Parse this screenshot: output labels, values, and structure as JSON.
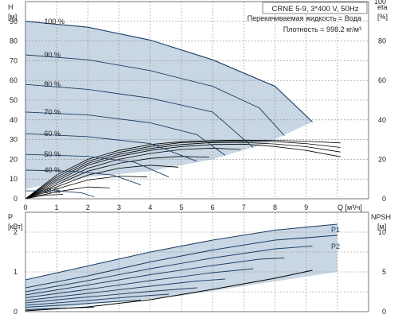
{
  "header": {
    "model": "CRNE 5-9, 3*400 V, 50Hz",
    "liquid_line": "Перекачиваемая жидкость = Вода",
    "density_line": "Плотность = 998.2 кг/м³"
  },
  "colors": {
    "area_fill": "#c9d6e3",
    "grid": "#8c8c8c",
    "curve": "#1c3f66",
    "eta_curve": "#000000",
    "axis_text": "#222222"
  },
  "chart_data": [
    {
      "type": "line",
      "title": "",
      "xlabel": "Q [м³/ч]",
      "ylabel": "H [м]",
      "right_label": "eta [%]",
      "xlim": [
        0,
        11
      ],
      "ylim": [
        0,
        100
      ],
      "right_ylim": [
        0,
        100
      ],
      "x_ticks": [
        0,
        1,
        2,
        3,
        4,
        5,
        6,
        7,
        8,
        9
      ],
      "y_ticks": [
        0,
        10,
        20,
        30,
        40,
        50,
        60,
        70,
        80,
        90
      ],
      "right_ticks": [
        0,
        20,
        40,
        60,
        80,
        100
      ],
      "grid": true,
      "operating_area": {
        "upper": [
          [
            0,
            90
          ],
          [
            2,
            87
          ],
          [
            4,
            80.5
          ],
          [
            6,
            70.5
          ],
          [
            8,
            57
          ],
          [
            9.2,
            39
          ]
        ],
        "lower": [
          [
            7.7,
            28
          ],
          [
            6,
            20
          ],
          [
            4,
            14
          ],
          [
            2,
            11
          ],
          [
            0,
            5
          ]
        ]
      },
      "series": [
        {
          "name": "100 %",
          "x": [
            0,
            2,
            4,
            6,
            8,
            9.2
          ],
          "y": [
            90,
            87,
            80.5,
            70.5,
            57,
            39
          ]
        },
        {
          "name": "90 %",
          "x": [
            0,
            2,
            4,
            6,
            7.5,
            8.3
          ],
          "y": [
            73,
            70.5,
            65,
            57,
            46,
            32
          ]
        },
        {
          "name": "80 %",
          "x": [
            0,
            2,
            4,
            6,
            7.3
          ],
          "y": [
            58,
            55.5,
            51,
            44,
            26
          ]
        },
        {
          "name": "70 %",
          "x": [
            0,
            2,
            4,
            5.5,
            6.4
          ],
          "y": [
            44,
            42.5,
            38.5,
            32.5,
            22
          ]
        },
        {
          "name": "60 %",
          "x": [
            0,
            2,
            4,
            5.5
          ],
          "y": [
            33,
            31.5,
            28,
            19
          ]
        },
        {
          "name": "50 %",
          "x": [
            0,
            2,
            3.5,
            4.6
          ],
          "y": [
            22.5,
            21.5,
            18.5,
            11
          ]
        },
        {
          "name": "40 %",
          "x": [
            0,
            1.5,
            2.8,
            3.7
          ],
          "y": [
            14.5,
            14,
            12,
            7
          ]
        },
        {
          "name": "21 %",
          "x": [
            0,
            1,
            1.8,
            2.2
          ],
          "y": [
            4,
            4,
            3,
            1
          ]
        }
      ],
      "eta_curves": [
        {
          "x": [
            0,
            1,
            2,
            3,
            4,
            5,
            6,
            7,
            8,
            9,
            10.1
          ],
          "y": [
            0,
            12,
            20,
            24.5,
            27.5,
            29,
            29.5,
            29.7,
            29.6,
            29.2,
            28.3
          ]
        },
        {
          "x": [
            0,
            1,
            2,
            3,
            4,
            5,
            6,
            7,
            8,
            9,
            10.1
          ],
          "y": [
            0,
            11,
            19,
            23.5,
            26.5,
            28.5,
            29,
            29.3,
            29,
            28,
            26
          ]
        },
        {
          "x": [
            0,
            1,
            2,
            3,
            4,
            5,
            6,
            7,
            8,
            9,
            10.1
          ],
          "y": [
            0,
            10,
            18,
            22.5,
            25.5,
            27.5,
            28.5,
            28.6,
            27.8,
            26.4,
            23.7
          ]
        },
        {
          "x": [
            0,
            1,
            2,
            3,
            4,
            5,
            6,
            7,
            8,
            9,
            10.1
          ],
          "y": [
            0,
            9,
            17,
            21.5,
            24.5,
            26.5,
            27.5,
            27.7,
            26.5,
            24.5,
            21.3
          ]
        },
        {
          "x": [
            0,
            1,
            2,
            3,
            4,
            5,
            6,
            6.9
          ],
          "y": [
            0,
            8,
            15.5,
            20,
            23,
            25,
            25.7,
            25
          ]
        },
        {
          "x": [
            0,
            1,
            2,
            3,
            4,
            5,
            5.9
          ],
          "y": [
            0,
            7,
            14,
            18,
            20.5,
            21.5,
            21
          ]
        },
        {
          "x": [
            0,
            1,
            2,
            3,
            4,
            4.9
          ],
          "y": [
            0,
            6,
            12,
            15.5,
            17,
            16
          ]
        },
        {
          "x": [
            0,
            1,
            2,
            3,
            3.9
          ],
          "y": [
            0,
            5,
            9.5,
            11.5,
            11
          ]
        },
        {
          "x": [
            0,
            1,
            2,
            2.7
          ],
          "y": [
            0,
            3.5,
            6,
            5.5
          ]
        },
        {
          "x": [
            0,
            0.6,
            1.2
          ],
          "y": [
            0,
            1.8,
            2.2
          ]
        }
      ]
    },
    {
      "type": "line",
      "title": "",
      "ylabel": "P [кВт]",
      "right_label": "NPSH [м]",
      "xlim": [
        0,
        11
      ],
      "ylim": [
        0,
        2.5
      ],
      "right_ylim": [
        0,
        12.5
      ],
      "y_ticks": [
        0,
        1,
        2
      ],
      "right_ticks": [
        0,
        5,
        10
      ],
      "grid": true,
      "legend_labels": [
        "P1",
        "P2"
      ],
      "power_area": {
        "upper": [
          [
            0,
            0.8
          ],
          [
            2,
            1.15
          ],
          [
            4,
            1.5
          ],
          [
            6,
            1.8
          ],
          [
            8,
            2.05
          ],
          [
            10,
            2.2
          ]
        ],
        "lower": [
          [
            0,
            0.02
          ],
          [
            5,
            0.4
          ],
          [
            10,
            1.0
          ]
        ]
      },
      "series": [
        {
          "name": "P1",
          "x": [
            0,
            2,
            4,
            6,
            8,
            10
          ],
          "y": [
            0.8,
            1.15,
            1.5,
            1.8,
            2.05,
            2.2
          ]
        },
        {
          "name": "P2",
          "x": [
            0,
            2,
            4,
            6,
            8,
            10
          ],
          "y": [
            0.6,
            0.9,
            1.25,
            1.55,
            1.8,
            1.92
          ]
        },
        {
          "x": [
            0,
            2,
            4,
            6,
            8,
            9.2
          ],
          "y": [
            0.5,
            0.78,
            1.08,
            1.35,
            1.58,
            1.65
          ]
        },
        {
          "x": [
            0,
            2,
            4,
            6,
            7.5,
            8.3
          ],
          "y": [
            0.42,
            0.67,
            0.93,
            1.16,
            1.32,
            1.35
          ]
        },
        {
          "x": [
            0,
            2,
            4,
            6,
            7.3
          ],
          "y": [
            0.35,
            0.56,
            0.78,
            0.98,
            1.08
          ]
        },
        {
          "x": [
            0,
            2,
            4,
            5.5,
            6.4
          ],
          "y": [
            0.28,
            0.46,
            0.64,
            0.77,
            0.82
          ]
        },
        {
          "x": [
            0,
            2,
            4,
            5.5
          ],
          "y": [
            0.22,
            0.37,
            0.51,
            0.6
          ]
        },
        {
          "x": [
            0,
            2,
            3.5,
            4.6
          ],
          "y": [
            0.16,
            0.28,
            0.38,
            0.44
          ]
        },
        {
          "x": [
            0,
            1.5,
            2.8,
            3.7
          ],
          "y": [
            0.11,
            0.18,
            0.25,
            0.29
          ]
        },
        {
          "x": [
            0,
            1,
            1.8,
            2.2
          ],
          "y": [
            0.05,
            0.08,
            0.1,
            0.11
          ]
        }
      ],
      "npsh": {
        "x": [
          0,
          2,
          4,
          6,
          8,
          9.2
        ],
        "y": [
          0.1,
          0.6,
          1.5,
          2.8,
          4.2,
          5.2
        ]
      }
    }
  ]
}
